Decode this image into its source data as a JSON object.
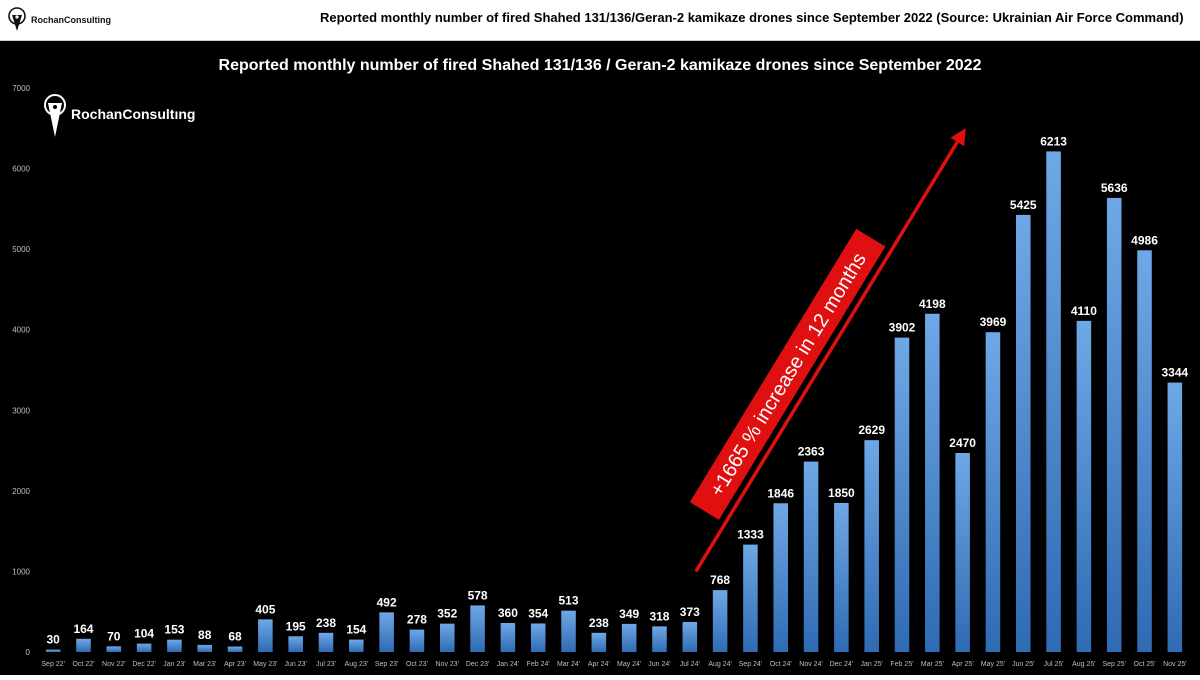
{
  "header": {
    "logo_text": "RochanConsulting",
    "title": "Reported monthly number of fired Shahed 131/136/Geran-2 kamikaze drones since September  2022 (Source: Ukrainian Air Force Command)"
  },
  "chart_logo_text": "RochanConsultıng",
  "colors": {
    "background": "#000000",
    "bar_top": "#6fa8e6",
    "bar_bottom": "#2f6bb3",
    "arrow": "#e01010",
    "text": "#ffffff",
    "axis_text": "#bfbfbf"
  },
  "chart_data": {
    "type": "bar",
    "title": "Reported monthly number of fired Shahed 131/136 / Geran-2 kamikaze drones since September 2022",
    "xlabel": "",
    "ylabel": "",
    "ylim": [
      0,
      7000
    ],
    "yticks": [
      0,
      1000,
      2000,
      3000,
      4000,
      5000,
      6000,
      7000
    ],
    "grid": false,
    "categories": [
      "Sep 22'",
      "Oct 22'",
      "Nov 22'",
      "Dec 22'",
      "Jan 23'",
      "Mar 23'",
      "Apr 23'",
      "May 23'",
      "Jun 23'",
      "Jul 23'",
      "Aug 23'",
      "Sep 23'",
      "Oct 23'",
      "Nov 23'",
      "Dec 23'",
      "Jan 24'",
      "Feb 24'",
      "Mar 24'",
      "Apr 24'",
      "May 24'",
      "Jun 24'",
      "Jul 24'",
      "Aug 24'",
      "Sep 24'",
      "Oct 24'",
      "Nov 24'",
      "Dec 24'",
      "Jan 25'",
      "Feb 25'",
      "Mar 25'",
      "Apr 25'",
      "May 25'",
      "Jun 25'",
      "Jul 25'",
      "Aug 25'",
      "Sep 25'",
      "Oct 25'",
      "Nov 25'"
    ],
    "values": [
      30,
      164,
      70,
      104,
      153,
      88,
      68,
      405,
      195,
      238,
      154,
      492,
      278,
      352,
      578,
      360,
      354,
      513,
      238,
      349,
      318,
      373,
      768,
      1333,
      1846,
      2363,
      1850,
      2629,
      3902,
      4198,
      2470,
      3969,
      5425,
      6213,
      4110,
      5636,
      4986,
      3344
    ],
    "annotation": {
      "text": "+1665 % increase in 12 months",
      "from_category": "Jul 24'",
      "from_value": 1000,
      "to_category": "Mar 25'",
      "to_value": 6500
    }
  }
}
